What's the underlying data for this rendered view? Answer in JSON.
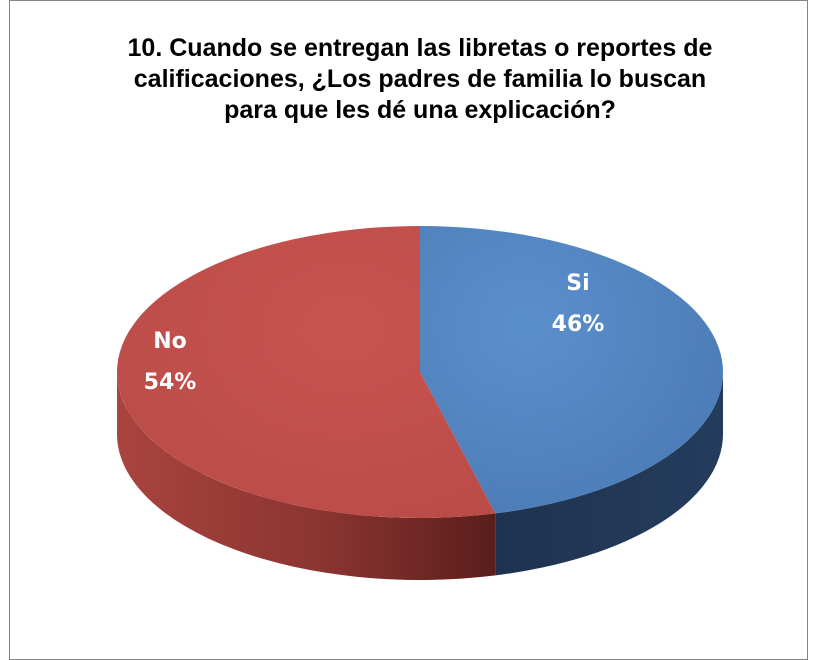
{
  "chart_data": {
    "type": "pie",
    "title": "10. Cuando se entregan las libretas o reportes de calificaciones, ¿Los padres de familia lo buscan para que les dé una explicación?",
    "categories": [
      "Si",
      "No"
    ],
    "values": [
      46,
      54
    ],
    "labels": [
      {
        "name": "Si",
        "percent": "46%"
      },
      {
        "name": "No",
        "percent": "54%"
      }
    ],
    "legend": "none",
    "colors": {
      "Si": {
        "top": "#4f81bd",
        "side_light": "#2e4a6e",
        "side_dark": "#1f3350"
      },
      "No": {
        "top": "#c0504d",
        "side_light": "#a9443f",
        "side_dark": "#5c1f1c"
      }
    }
  }
}
